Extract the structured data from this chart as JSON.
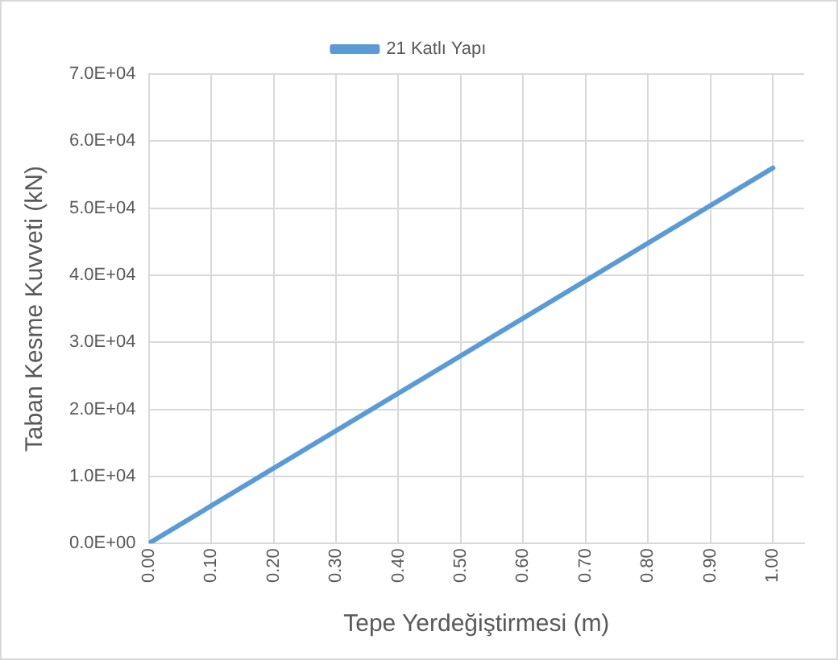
{
  "chart_data": {
    "type": "line",
    "xlabel": "Tepe Yerdeğiştirmesi (m)",
    "ylabel": "Taban Kesme Kuvveti (kN)",
    "x": [
      0,
      1.0
    ],
    "series": [
      {
        "name": "21 Katlı Yapı",
        "color": "#5b9bd5",
        "values": [
          0,
          56000
        ]
      }
    ],
    "xlim": [
      0,
      1.05
    ],
    "xticks": [
      {
        "value": 0,
        "label": "0.00"
      },
      {
        "value": 0.1,
        "label": "0.10"
      },
      {
        "value": 0.2,
        "label": "0.20"
      },
      {
        "value": 0.3,
        "label": "0.30"
      },
      {
        "value": 0.4,
        "label": "0.40"
      },
      {
        "value": 0.5,
        "label": "0.50"
      },
      {
        "value": 0.6,
        "label": "0.60"
      },
      {
        "value": 0.7,
        "label": "0.70"
      },
      {
        "value": 0.8,
        "label": "0.80"
      },
      {
        "value": 0.9,
        "label": "0.90"
      },
      {
        "value": 1.0,
        "label": "1.00"
      }
    ],
    "ylim": [
      0,
      70000
    ],
    "yticks": [
      {
        "value": 0,
        "label": "0.0E+00"
      },
      {
        "value": 10000,
        "label": "1.0E+04"
      },
      {
        "value": 20000,
        "label": "2.0E+04"
      },
      {
        "value": 30000,
        "label": "3.0E+04"
      },
      {
        "value": 40000,
        "label": "4.0E+04"
      },
      {
        "value": 50000,
        "label": "5.0E+04"
      },
      {
        "value": 60000,
        "label": "6.0E+04"
      },
      {
        "value": 70000,
        "label": "7.0E+04"
      }
    ],
    "grid": true,
    "legend": "top",
    "marker": "none",
    "line_style": "solid"
  }
}
